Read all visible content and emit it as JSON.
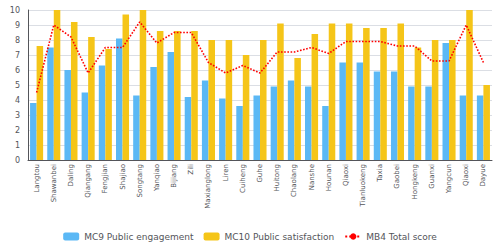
{
  "chart_data": {
    "type": "bar",
    "categories": [
      "Langtou",
      "Shawanbei",
      "Daling",
      "Qiangang",
      "Fengjian",
      "Shajiao",
      "Songtang",
      "Yanqiao",
      "Bijiang",
      "Zili",
      "Maxianglong",
      "Liren",
      "Cuiheng",
      "Guhe",
      "Huitong",
      "Chaolang",
      "Nanshe",
      "Hounan",
      "Qiaoxi",
      "Tianluokeng",
      "Taxia",
      "Gaobei",
      "Hongkeng",
      "Guanxi",
      "Yangcun",
      "Qiaoxi",
      "Dayue"
    ],
    "series": [
      {
        "name": "MC9 Public engagement",
        "type": "bar",
        "color": "#5BB8F5",
        "values": [
          3.8,
          7.5,
          6.0,
          4.5,
          6.3,
          8.1,
          4.3,
          6.2,
          7.2,
          4.2,
          5.3,
          4.1,
          3.6,
          4.3,
          4.9,
          5.3,
          4.9,
          3.6,
          6.5,
          6.5,
          5.9,
          5.9,
          4.9,
          4.9,
          7.8,
          4.3,
          4.3
        ]
      },
      {
        "name": "MC10 Public satisfaction",
        "type": "bar",
        "color": "#F5C518",
        "values": [
          7.6,
          10.0,
          9.2,
          8.2,
          7.4,
          9.7,
          10.0,
          8.6,
          8.6,
          8.6,
          8.0,
          8.0,
          7.0,
          8.0,
          9.1,
          6.8,
          8.4,
          9.1,
          9.1,
          8.8,
          8.8,
          9.1,
          7.5,
          8.0,
          8.0,
          10.0,
          5.0
        ]
      },
      {
        "name": "MB4 Total score",
        "type": "line",
        "color": "#FF0000",
        "line_style": "dotted",
        "values": [
          4.5,
          9.0,
          8.2,
          5.8,
          7.5,
          7.5,
          9.2,
          7.8,
          8.5,
          8.5,
          6.5,
          5.8,
          6.3,
          5.8,
          7.2,
          7.2,
          7.5,
          7.1,
          7.9,
          7.9,
          7.9,
          7.6,
          7.6,
          6.6,
          6.6,
          9.0,
          6.5
        ]
      }
    ],
    "ylim": [
      0,
      10
    ],
    "yticks": [
      0,
      1,
      2,
      3,
      4,
      5,
      6,
      7,
      8,
      9,
      10
    ],
    "grid": true,
    "legend": "bottom"
  }
}
